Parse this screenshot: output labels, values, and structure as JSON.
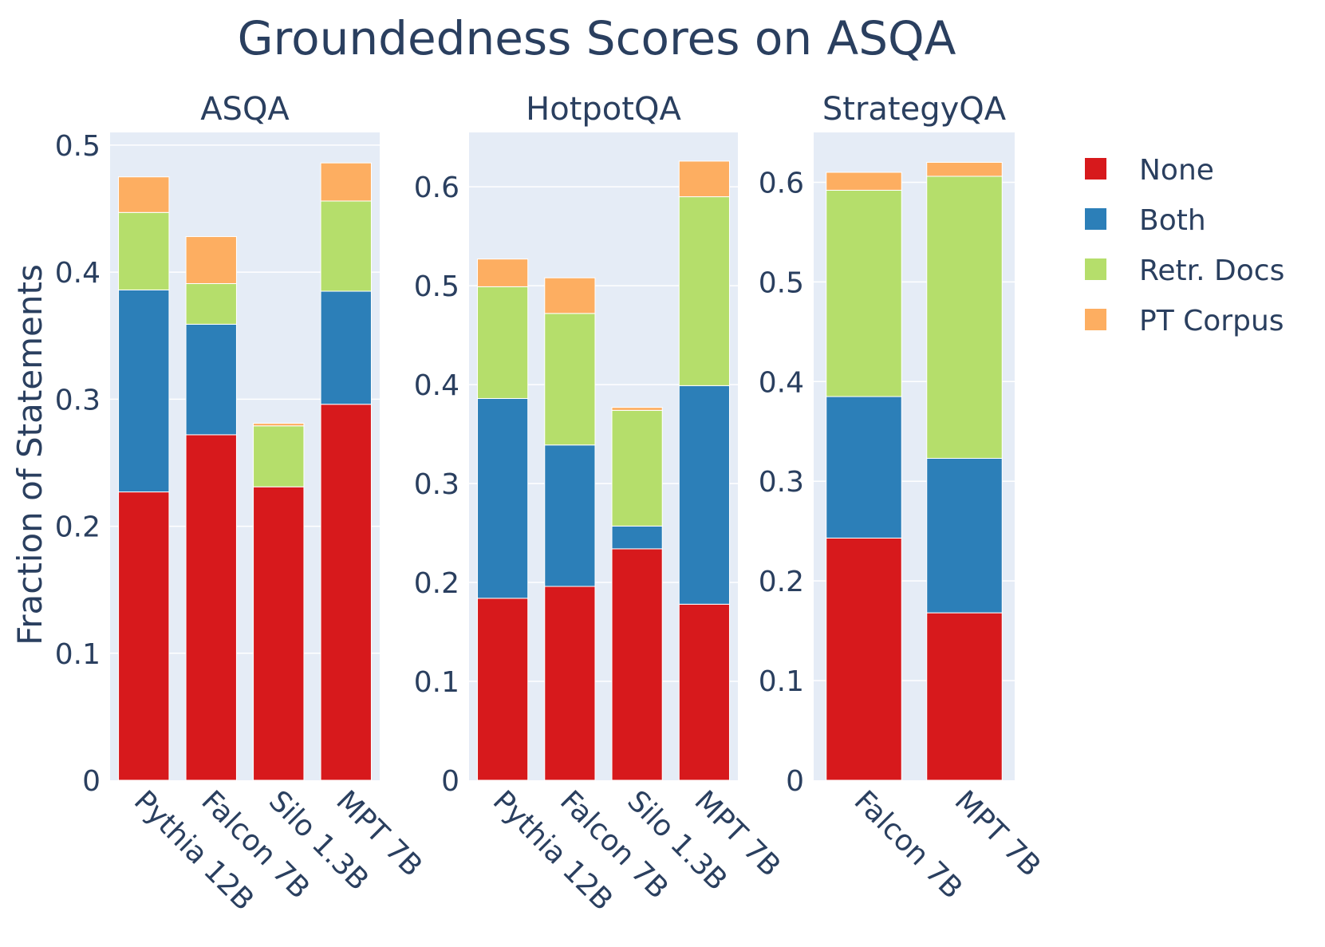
{
  "chart_data": {
    "type": "bar",
    "stacked": true,
    "title": "Groundedness Scores on ASQA",
    "ylabel": "Fraction of Statements",
    "legend": {
      "placement": "right",
      "entries": [
        {
          "name": "None",
          "color": "#d7191c"
        },
        {
          "name": "Both",
          "color": "#2c7fb8"
        },
        {
          "name": "Retr. Docs",
          "color": "#b5de6b"
        },
        {
          "name": "PT Corpus",
          "color": "#fdae61"
        }
      ]
    },
    "panels": [
      {
        "subtitle": "ASQA",
        "categories": [
          "Pythia 12B",
          "Falcon 7B",
          "Silo 1.3B",
          "MPT 7B"
        ],
        "ylim": [
          0,
          0.51
        ],
        "yticks": [
          0,
          0.1,
          0.2,
          0.3,
          0.4,
          0.5
        ],
        "ytick_labels": [
          "0",
          "0.1",
          "0.2",
          "0.3",
          "0.4",
          "0.5"
        ],
        "series": [
          {
            "name": "None",
            "values": [
              0.227,
              0.272,
              0.231,
              0.296
            ]
          },
          {
            "name": "Both",
            "values": [
              0.159,
              0.087,
              0.0,
              0.089
            ]
          },
          {
            "name": "Retr. Docs",
            "values": [
              0.061,
              0.032,
              0.048,
              0.071
            ]
          },
          {
            "name": "PT Corpus",
            "values": [
              0.028,
              0.037,
              0.002,
              0.03
            ]
          }
        ]
      },
      {
        "subtitle": "HotpotQA",
        "categories": [
          "Pythia 12B",
          "Falcon 7B",
          "Silo 1.3B",
          "MPT 7B"
        ],
        "ylim": [
          0,
          0.655
        ],
        "yticks": [
          0,
          0.1,
          0.2,
          0.3,
          0.4,
          0.5,
          0.6
        ],
        "ytick_labels": [
          "0",
          "0.1",
          "0.2",
          "0.3",
          "0.4",
          "0.5",
          "0.6"
        ],
        "series": [
          {
            "name": "None",
            "values": [
              0.184,
              0.196,
              0.234,
              0.178
            ]
          },
          {
            "name": "Both",
            "values": [
              0.202,
              0.143,
              0.023,
              0.221
            ]
          },
          {
            "name": "Retr. Docs",
            "values": [
              0.113,
              0.133,
              0.117,
              0.191
            ]
          },
          {
            "name": "PT Corpus",
            "values": [
              0.028,
              0.036,
              0.003,
              0.036
            ]
          }
        ]
      },
      {
        "subtitle": "StrategyQA",
        "categories": [
          "Falcon 7B",
          "MPT 7B"
        ],
        "ylim": [
          0,
          0.65
        ],
        "yticks": [
          0,
          0.1,
          0.2,
          0.3,
          0.4,
          0.5,
          0.6
        ],
        "ytick_labels": [
          "0",
          "0.1",
          "0.2",
          "0.3",
          "0.4",
          "0.5",
          "0.6"
        ],
        "series": [
          {
            "name": "None",
            "values": [
              0.243,
              0.168
            ]
          },
          {
            "name": "Both",
            "values": [
              0.142,
              0.155
            ]
          },
          {
            "name": "Retr. Docs",
            "values": [
              0.207,
              0.283
            ]
          },
          {
            "name": "PT Corpus",
            "values": [
              0.018,
              0.014
            ]
          }
        ]
      }
    ]
  }
}
